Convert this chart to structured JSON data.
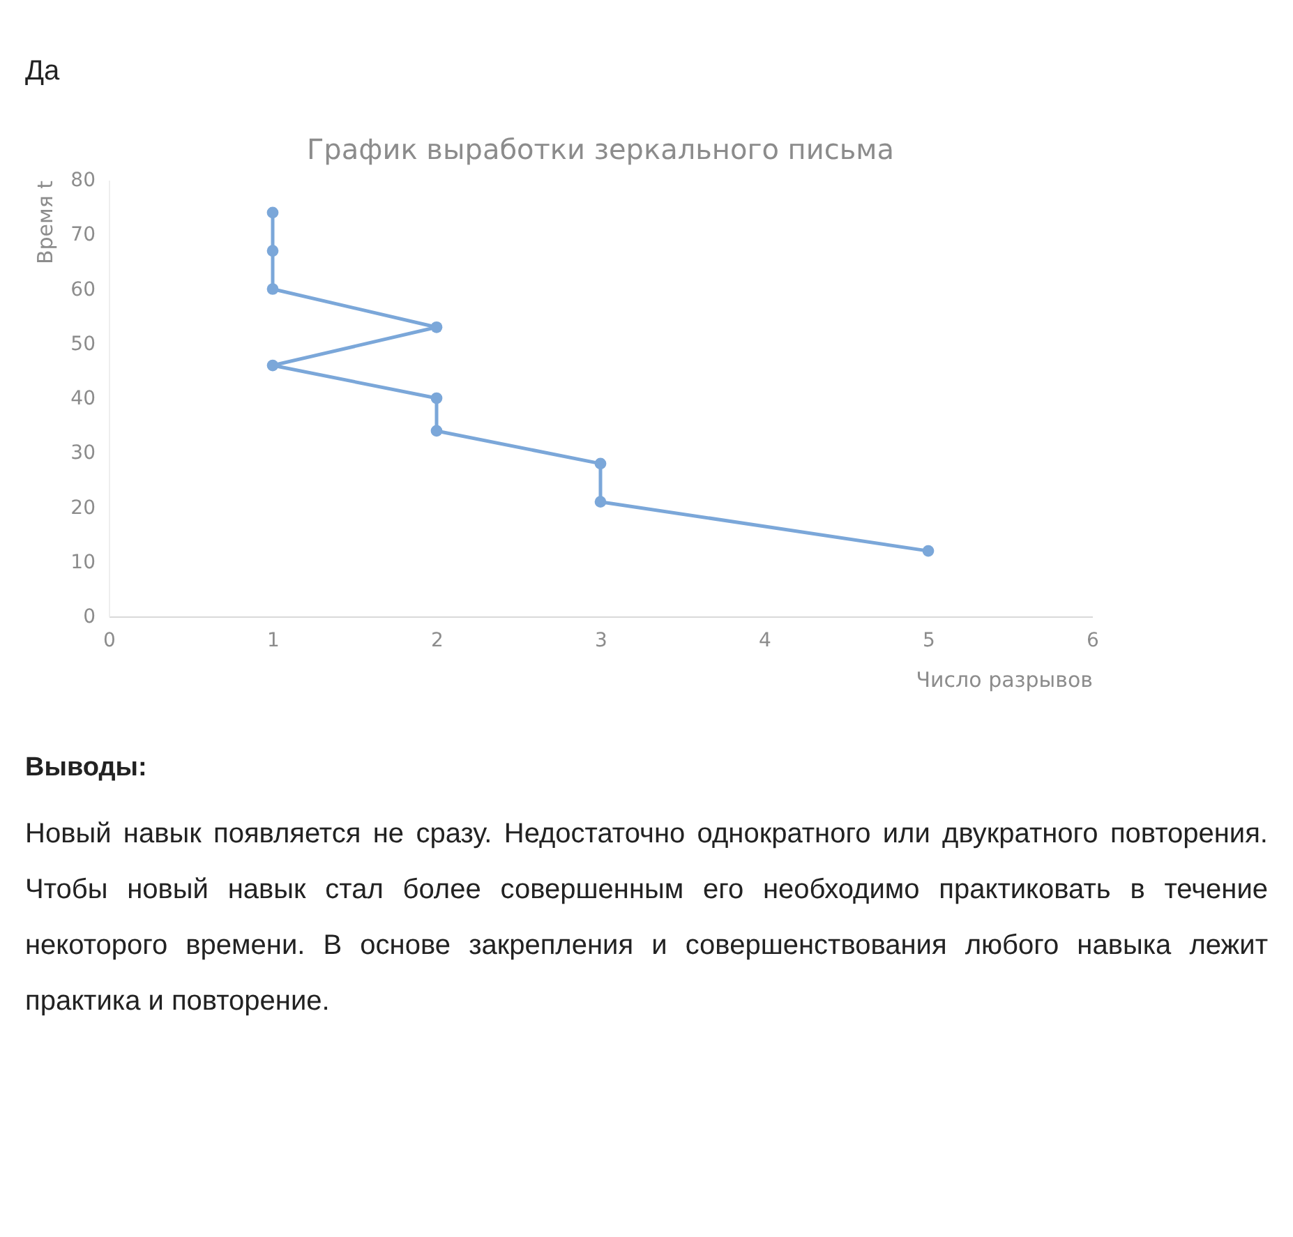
{
  "chart_data": {
    "type": "line",
    "title": "График выработки зеркального письма",
    "xlabel": "Число разрывов",
    "ylabel": "Время t",
    "x": [
      1,
      1,
      1,
      2,
      1,
      2,
      2,
      3,
      3,
      5
    ],
    "series": [
      {
        "color": "#7ba7d9",
        "values": [
          74,
          67,
          60,
          53,
          46,
          40,
          34,
          28,
          21,
          12
        ]
      }
    ],
    "xlim": [
      0,
      6
    ],
    "xticks": [
      0,
      1,
      2,
      3,
      4,
      5,
      6
    ],
    "ylim": [
      0,
      80
    ],
    "yticks": [
      0,
      10,
      20,
      30,
      40,
      50,
      60,
      70,
      80
    ],
    "marker": "circle",
    "grid": false,
    "annotations": [
      "Да",
      "Выводы:",
      "Новый навык появляется не сразу. Недостаточно однократного или двукратного повторения. Чтобы новый навык стал более совершенным его необходимо практиковать в течение некоторого времени. В основе закрепления и совершенствования любого навыка лежит практика и повторение."
    ]
  }
}
